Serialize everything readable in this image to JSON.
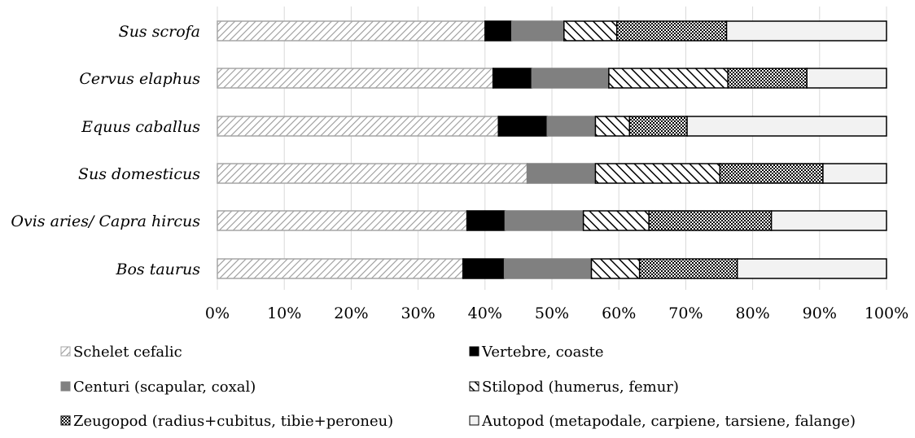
{
  "chart_data": {
    "type": "bar",
    "orientation": "horizontal",
    "stacked": "percent",
    "categories": [
      "Sus scrofa",
      "Cervus elaphus",
      "Equus caballus",
      "Sus domesticus",
      "Ovis aries/ Capra hircus",
      "Bos taurus"
    ],
    "x_ticks": [
      "0%",
      "10%",
      "20%",
      "30%",
      "40%",
      "50%",
      "60%",
      "70%",
      "80%",
      "90%",
      "100%"
    ],
    "xlim": [
      0,
      100
    ],
    "grid": true,
    "legend_position": "bottom",
    "series": [
      {
        "name": "Schelet cefalic",
        "pattern": "diagonal-light",
        "values": [
          40.0,
          41.2,
          42.0,
          46.3,
          37.3,
          36.7
        ]
      },
      {
        "name": "Vertebre, coaste",
        "pattern": "solid-black",
        "values": [
          4.0,
          5.8,
          7.3,
          0.0,
          5.7,
          6.2
        ]
      },
      {
        "name": "Centuri (scapular, coxal)",
        "pattern": "solid-gray",
        "values": [
          7.8,
          11.5,
          7.2,
          10.2,
          11.7,
          13.0
        ]
      },
      {
        "name": "Stilopod (humerus, femur)",
        "pattern": "diagonal-bold",
        "values": [
          7.9,
          17.8,
          5.1,
          18.6,
          9.8,
          7.2
        ]
      },
      {
        "name": "Zeugopod (radius+cubitus, tibie+peroneu)",
        "pattern": "checker",
        "values": [
          16.4,
          11.8,
          8.6,
          15.4,
          18.3,
          14.6
        ]
      },
      {
        "name": "Autopod (metapodale, carpiene, tarsiene, falange)",
        "pattern": "light",
        "values": [
          23.9,
          11.9,
          29.8,
          9.5,
          17.2,
          22.3
        ]
      }
    ],
    "colors": {
      "solid_black": "#000000",
      "solid_gray": "#808080",
      "light_fill": "#f2f2f2",
      "hatch_light": "#a6a6a6",
      "grid": "#d9d9d9"
    }
  }
}
